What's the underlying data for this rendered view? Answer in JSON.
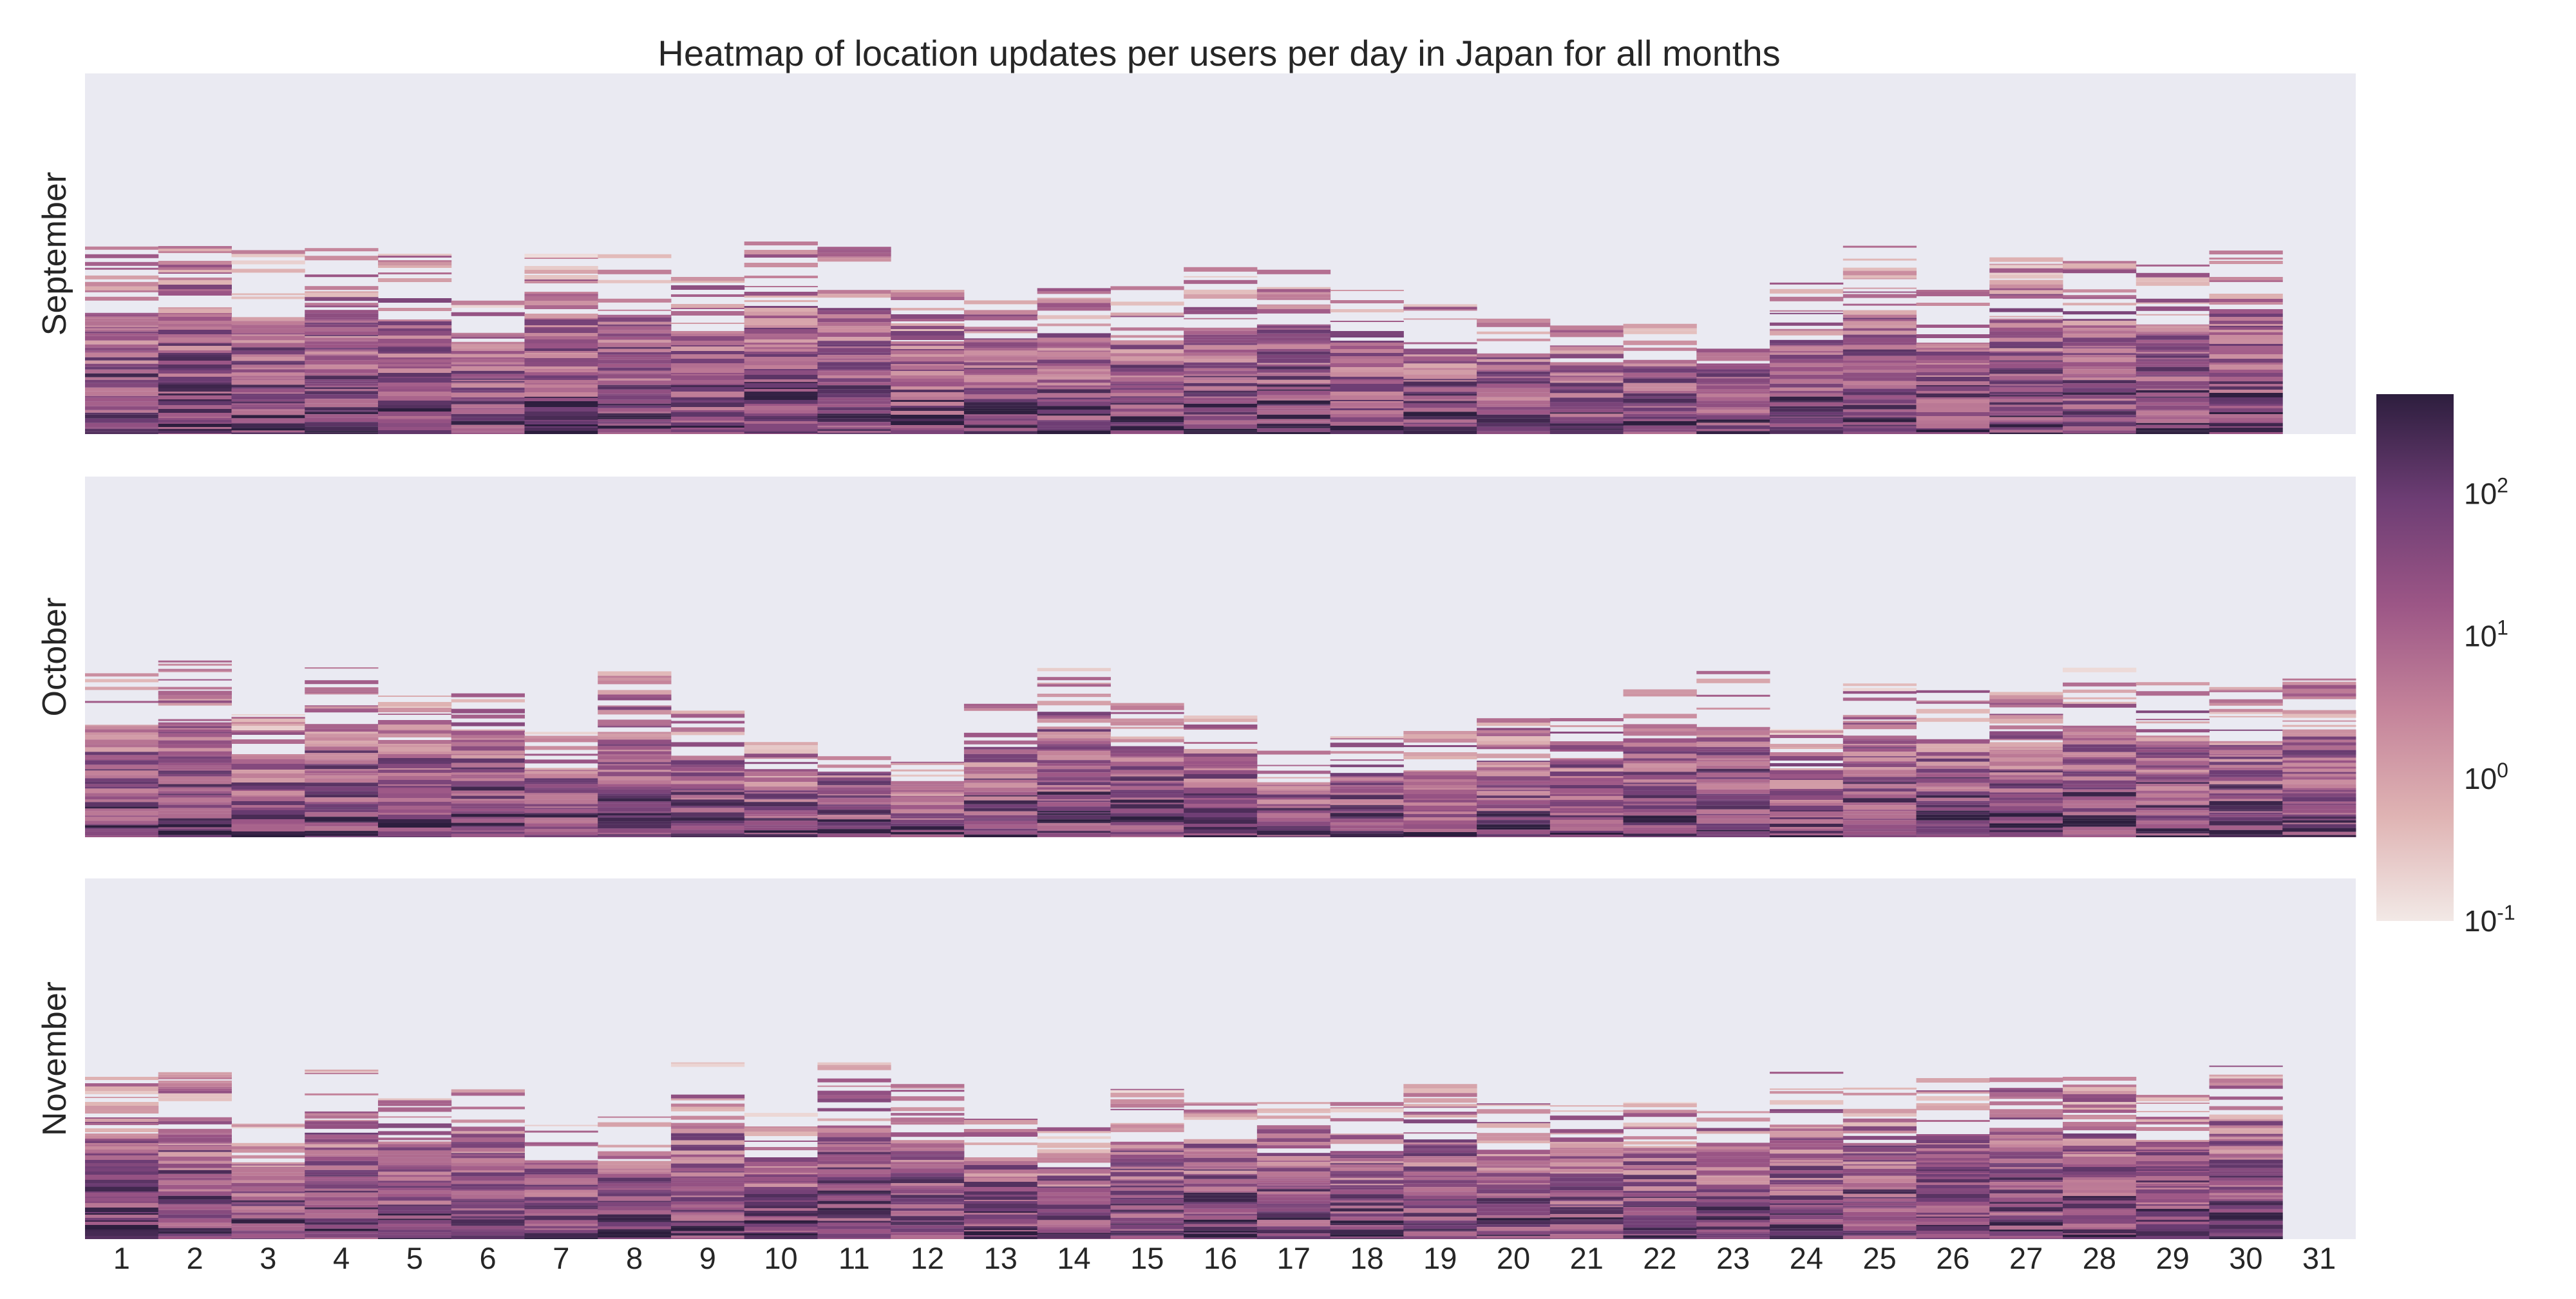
{
  "chart_data": {
    "type": "heatmap",
    "title": "Heatmap of location updates per users per day in Japan for all months",
    "x_categories": [
      "1",
      "2",
      "3",
      "4",
      "5",
      "6",
      "7",
      "8",
      "9",
      "10",
      "11",
      "12",
      "13",
      "14",
      "15",
      "16",
      "17",
      "18",
      "19",
      "20",
      "21",
      "22",
      "23",
      "24",
      "25",
      "26",
      "27",
      "28",
      "29",
      "30",
      "31"
    ],
    "colorbar": {
      "scale": "log",
      "range": [
        0.1,
        500
      ],
      "ticks": [
        {
          "base": "10",
          "exp": "2",
          "value": 100
        },
        {
          "base": "10",
          "exp": "1",
          "value": 10
        },
        {
          "base": "10",
          "exp": "0",
          "value": 1
        },
        {
          "base": "10",
          "exp": "-1",
          "value": 0.1
        }
      ],
      "colors": [
        "#f2e9e6",
        "#dfb3b3",
        "#c4839a",
        "#9c5686",
        "#6d3d74",
        "#2d1e3e"
      ]
    },
    "background": "#eaeaf2",
    "panels": [
      {
        "month": "September",
        "days_with_data": 30,
        "filled_fraction_by_day": [
          0.52,
          0.55,
          0.51,
          0.53,
          0.5,
          0.37,
          0.5,
          0.52,
          0.45,
          0.55,
          0.53,
          0.4,
          0.41,
          0.41,
          0.41,
          0.47,
          0.47,
          0.4,
          0.36,
          0.32,
          0.31,
          0.32,
          0.31,
          0.42,
          0.54,
          0.4,
          0.49,
          0.48,
          0.47,
          0.55,
          0.0
        ]
      },
      {
        "month": "October",
        "days_with_data": 31,
        "filled_fraction_by_day": [
          0.46,
          0.49,
          0.35,
          0.48,
          0.4,
          0.44,
          0.31,
          0.46,
          0.36,
          0.28,
          0.28,
          0.22,
          0.37,
          0.48,
          0.39,
          0.35,
          0.24,
          0.28,
          0.3,
          0.33,
          0.35,
          0.41,
          0.47,
          0.3,
          0.43,
          0.42,
          0.41,
          0.47,
          0.43,
          0.42,
          0.44
        ]
      },
      {
        "month": "November",
        "days_with_data": 30,
        "filled_fraction_by_day": [
          0.45,
          0.47,
          0.32,
          0.47,
          0.41,
          0.46,
          0.34,
          0.34,
          0.49,
          0.35,
          0.49,
          0.43,
          0.35,
          0.31,
          0.42,
          0.42,
          0.38,
          0.38,
          0.43,
          0.38,
          0.38,
          0.38,
          0.36,
          0.48,
          0.42,
          0.45,
          0.48,
          0.45,
          0.4,
          0.49,
          0.0
        ]
      }
    ]
  }
}
